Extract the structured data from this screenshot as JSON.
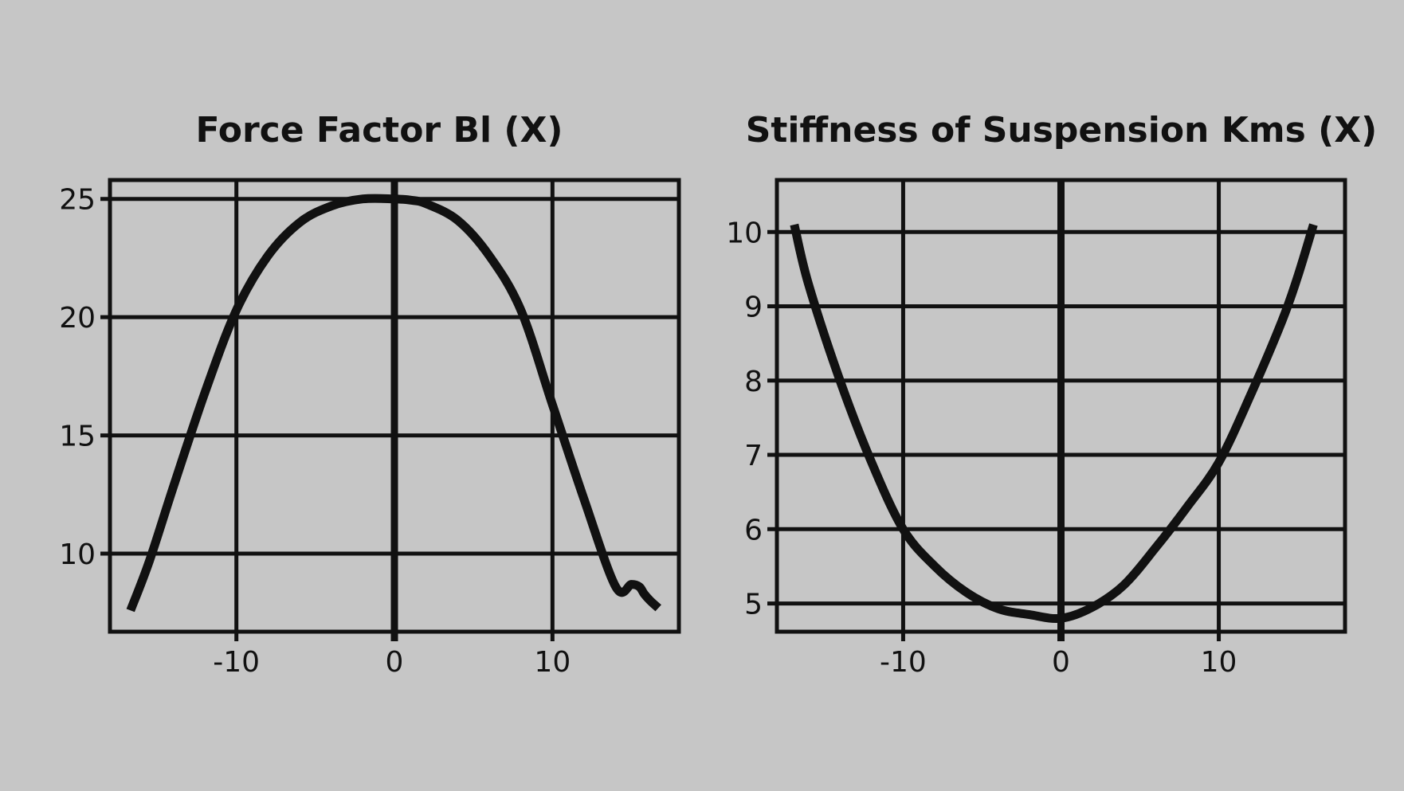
{
  "colors": {
    "background": "#c6c6c6",
    "ink": "#111111"
  },
  "chart_data": [
    {
      "type": "line",
      "title": "Force Factor Bl (X)",
      "xlabel": "",
      "ylabel": "",
      "xlim": [
        -18,
        18
      ],
      "ylim": [
        6.7,
        25.8
      ],
      "xticks": [
        -10,
        0,
        10
      ],
      "xtick_labels": [
        "-10",
        "0",
        "10"
      ],
      "yticks": [
        10,
        15,
        20,
        25
      ],
      "ytick_labels": [
        "10",
        "15",
        "20",
        "25"
      ],
      "grid": true,
      "series": [
        {
          "x": [
            -16.7,
            -15.5,
            -14,
            -12,
            -10,
            -8,
            -6,
            -4,
            -2,
            0,
            1,
            2,
            4,
            6,
            8,
            10,
            12,
            14,
            15,
            15.5,
            15.8,
            16.2,
            16.7
          ],
          "y": [
            7.6,
            9.7,
            12.8,
            16.8,
            20.3,
            22.6,
            24.0,
            24.7,
            25.0,
            25.0,
            24.95,
            24.8,
            24.1,
            22.6,
            20.3,
            16.3,
            12.3,
            8.6,
            8.7,
            8.6,
            8.3,
            8.0,
            7.7
          ]
        }
      ]
    },
    {
      "type": "line",
      "title": "Stiffness of Suspension Kms (X)",
      "xlabel": "",
      "ylabel": "",
      "xlim": [
        -18,
        18
      ],
      "ylim": [
        4.62,
        10.7
      ],
      "xticks": [
        -10,
        0,
        10
      ],
      "xtick_labels": [
        "-10",
        "0",
        "10"
      ],
      "yticks": [
        5,
        6,
        7,
        8,
        9,
        10
      ],
      "ytick_labels": [
        "5",
        "6",
        "7",
        "8",
        "9",
        "10"
      ],
      "grid": true,
      "series": [
        {
          "x": [
            -16.9,
            -16,
            -14,
            -12,
            -10,
            -8,
            -6,
            -4,
            -2,
            0,
            2,
            4,
            6,
            8,
            10,
            12,
            14,
            15,
            16
          ],
          "y": [
            10.1,
            9.3,
            8.0,
            6.9,
            6.0,
            5.5,
            5.15,
            4.93,
            4.85,
            4.8,
            4.95,
            5.25,
            5.75,
            6.3,
            6.9,
            7.8,
            8.8,
            9.4,
            10.1
          ]
        }
      ]
    }
  ]
}
